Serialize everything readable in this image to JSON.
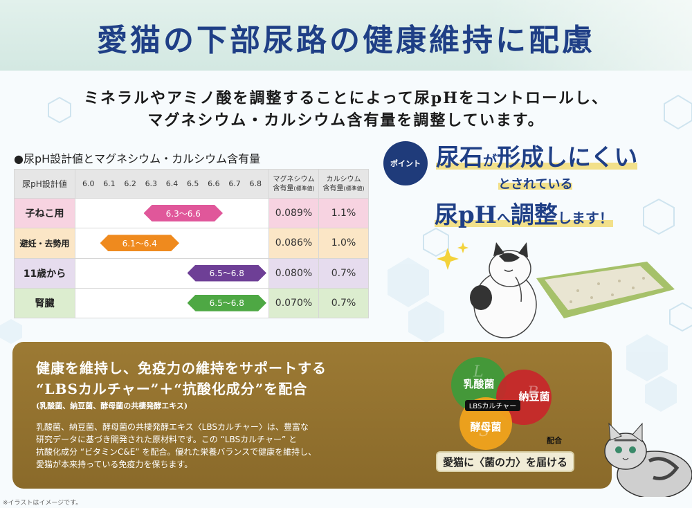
{
  "title": "愛猫の下部尿路の健康維持に配慮",
  "subtitle": [
    "ミネラルやアミノ酸を調整することによって尿pHをコントロールし、",
    "マグネシウム・カルシウム含有量を調整しています。"
  ],
  "table": {
    "heading": "●尿pH設計値とマグネシウム・カルシウム含有量",
    "col_header": "尿pH設計値",
    "ticks": [
      "6.0",
      "6.1",
      "6.2",
      "6.3",
      "6.4",
      "6.5",
      "6.6",
      "6.7",
      "6.8"
    ],
    "mg_header": "マグネシウム",
    "mg_header2": "含有量",
    "mg_note": "(標準値)",
    "ca_header": "カルシウム",
    "ca_header2": "含有量",
    "ca_note": "(標準値)",
    "rows": [
      {
        "label": "子ねこ用",
        "range": "6.3～6.6",
        "min": 6.3,
        "max": 6.6,
        "mg": "0.089%",
        "ca": "1.1%",
        "color": "#e0579a"
      },
      {
        "label": "避妊・去勢用",
        "range": "6.1～6.4",
        "min": 6.1,
        "max": 6.4,
        "mg": "0.086%",
        "ca": "1.0%",
        "color": "#ef8a1e"
      },
      {
        "label": "11歳から",
        "range": "6.5～6.8",
        "min": 6.5,
        "max": 6.8,
        "mg": "0.080%",
        "ca": "0.7%",
        "color": "#6e3f96"
      },
      {
        "label": "腎臓",
        "range": "6.5～6.8",
        "min": 6.5,
        "max": 6.8,
        "mg": "0.070%",
        "ca": "0.7%",
        "color": "#4ea844"
      }
    ]
  },
  "point": {
    "badge": "ポイント",
    "line1_a": "尿石",
    "line1_b": "が",
    "line1_c": "形成しにくい",
    "line2": "とされている",
    "line3_a": "尿pH",
    "line3_b": "へ",
    "line3_c": "調整",
    "line3_d": "します！"
  },
  "panel": {
    "title1": "健康を維持し、免疫力の維持をサポートする",
    "title2": "“LBSカルチャー”＋“抗酸化成分”を配合",
    "sub": "(乳酸菌、納豆菌、酵母菌の共棲発酵エキス)",
    "body": [
      "乳酸菌、納豆菌、酵母菌の共棲発酵エキス〈LBSカルチャー〉は、豊富な",
      "研究データに基づき開発された原材料です。この “LBSカルチャー” と",
      "抗酸化成分 “ビタミンC&E” を配合。優れた栄養バランスで健康を維持し、",
      "愛猫が本来持っている免疫力を保ちます。"
    ],
    "venn": {
      "a": "乳酸菌",
      "b": "納豆菌",
      "c": "酵母菌",
      "center": "LBSカルチャー",
      "tag": "配合"
    },
    "promise": "愛猫に〈菌の力〉を届ける"
  },
  "footnote": "※イラストはイメージです。"
}
